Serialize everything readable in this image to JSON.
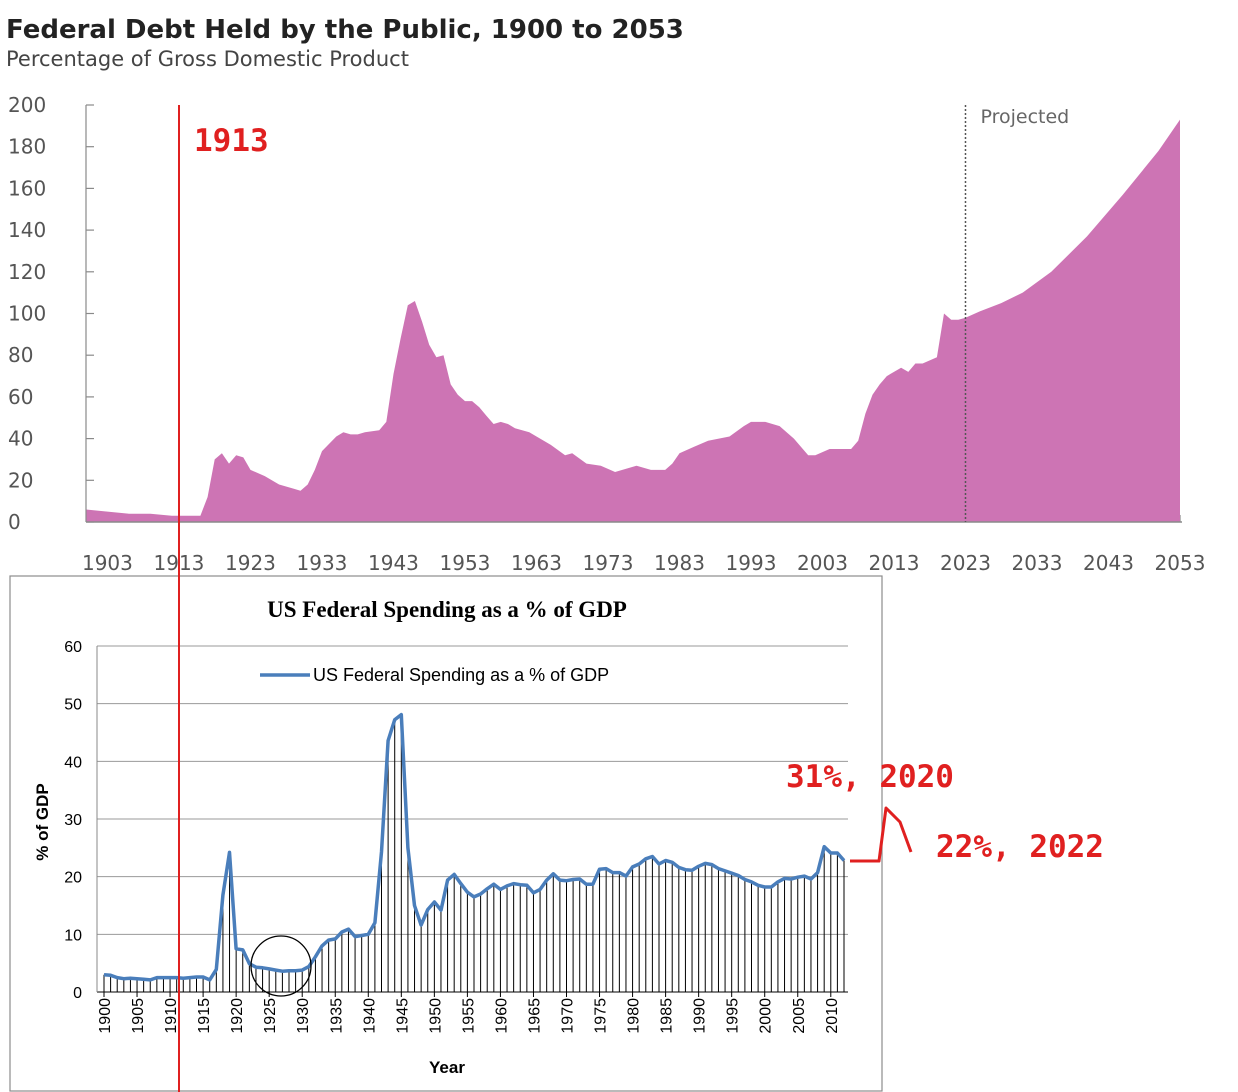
{
  "chart_data": [
    {
      "type": "area",
      "title": "Federal Debt Held by the Public, 1900 to 2053",
      "subtitle": "Percentage of Gross Domestic Product",
      "xlabel": "",
      "ylabel": "",
      "xlim": [
        1900,
        2053
      ],
      "ylim": [
        0,
        200
      ],
      "yticks": [
        0,
        20,
        40,
        60,
        80,
        100,
        120,
        140,
        160,
        180,
        200
      ],
      "xticks": [
        1903,
        1913,
        1923,
        1933,
        1943,
        1953,
        1963,
        1973,
        1983,
        1993,
        2003,
        2013,
        2023,
        2033,
        2043,
        2053
      ],
      "grid": false,
      "color": "#cd74b4",
      "projection_start": 2023,
      "projection_label": "Projected",
      "points": [
        [
          1900,
          6
        ],
        [
          1903,
          5
        ],
        [
          1906,
          4
        ],
        [
          1909,
          4
        ],
        [
          1912,
          3
        ],
        [
          1914,
          3
        ],
        [
          1915,
          3
        ],
        [
          1916,
          3
        ],
        [
          1917,
          12
        ],
        [
          1918,
          30
        ],
        [
          1919,
          33
        ],
        [
          1920,
          28
        ],
        [
          1921,
          32
        ],
        [
          1922,
          31
        ],
        [
          1923,
          25
        ],
        [
          1925,
          22
        ],
        [
          1927,
          18
        ],
        [
          1929,
          16
        ],
        [
          1930,
          15
        ],
        [
          1931,
          18
        ],
        [
          1932,
          25
        ],
        [
          1933,
          34
        ],
        [
          1935,
          41
        ],
        [
          1936,
          43
        ],
        [
          1937,
          42
        ],
        [
          1938,
          42
        ],
        [
          1939,
          43
        ],
        [
          1941,
          44
        ],
        [
          1942,
          48
        ],
        [
          1943,
          71
        ],
        [
          1944,
          88
        ],
        [
          1945,
          104
        ],
        [
          1946,
          106
        ],
        [
          1947,
          96
        ],
        [
          1948,
          85
        ],
        [
          1949,
          79
        ],
        [
          1950,
          80
        ],
        [
          1951,
          66
        ],
        [
          1952,
          61
        ],
        [
          1953,
          58
        ],
        [
          1954,
          58
        ],
        [
          1955,
          55
        ],
        [
          1956,
          51
        ],
        [
          1957,
          47
        ],
        [
          1958,
          48
        ],
        [
          1959,
          47
        ],
        [
          1960,
          45
        ],
        [
          1962,
          43
        ],
        [
          1963,
          41
        ],
        [
          1965,
          37
        ],
        [
          1967,
          32
        ],
        [
          1968,
          33
        ],
        [
          1970,
          28
        ],
        [
          1972,
          27
        ],
        [
          1974,
          24
        ],
        [
          1975,
          25
        ],
        [
          1977,
          27
        ],
        [
          1979,
          25
        ],
        [
          1981,
          25
        ],
        [
          1982,
          28
        ],
        [
          1983,
          33
        ],
        [
          1985,
          36
        ],
        [
          1987,
          39
        ],
        [
          1990,
          41
        ],
        [
          1992,
          46
        ],
        [
          1993,
          48
        ],
        [
          1995,
          48
        ],
        [
          1997,
          46
        ],
        [
          1999,
          40
        ],
        [
          2001,
          32
        ],
        [
          2002,
          32
        ],
        [
          2004,
          35
        ],
        [
          2006,
          35
        ],
        [
          2007,
          35
        ],
        [
          2008,
          39
        ],
        [
          2009,
          52
        ],
        [
          2010,
          61
        ],
        [
          2011,
          66
        ],
        [
          2012,
          70
        ],
        [
          2014,
          74
        ],
        [
          2015,
          72
        ],
        [
          2016,
          76
        ],
        [
          2017,
          76
        ],
        [
          2019,
          79
        ],
        [
          2020,
          100
        ],
        [
          2021,
          97
        ],
        [
          2022,
          97
        ],
        [
          2023,
          98
        ],
        [
          2025,
          101
        ],
        [
          2028,
          105
        ],
        [
          2031,
          110
        ],
        [
          2035,
          120
        ],
        [
          2040,
          137
        ],
        [
          2045,
          157
        ],
        [
          2050,
          178
        ],
        [
          2053,
          193
        ]
      ]
    },
    {
      "type": "line",
      "title": "US Federal Spending as a % of GDP",
      "xlabel": "Year",
      "ylabel": "% of GDP",
      "xlim": [
        1900,
        2012
      ],
      "ylim": [
        0,
        60
      ],
      "yticks": [
        0,
        10,
        20,
        30,
        40,
        50,
        60
      ],
      "xticks": [
        1900,
        1905,
        1910,
        1915,
        1920,
        1925,
        1930,
        1935,
        1940,
        1945,
        1950,
        1955,
        1960,
        1965,
        1970,
        1975,
        1980,
        1985,
        1990,
        1995,
        2000,
        2005,
        2010
      ],
      "grid": true,
      "legend": "top-center",
      "series": [
        {
          "name": "US Federal Spending as a % of GDP",
          "color": "#4a7ebb",
          "x": [
            1900,
            1901,
            1902,
            1903,
            1904,
            1905,
            1906,
            1907,
            1908,
            1909,
            1910,
            1911,
            1912,
            1913,
            1914,
            1915,
            1916,
            1917,
            1918,
            1919,
            1920,
            1921,
            1922,
            1923,
            1924,
            1925,
            1926,
            1927,
            1928,
            1929,
            1930,
            1931,
            1932,
            1933,
            1934,
            1935,
            1936,
            1937,
            1938,
            1939,
            1940,
            1941,
            1942,
            1943,
            1944,
            1945,
            1946,
            1947,
            1948,
            1949,
            1950,
            1951,
            1952,
            1953,
            1954,
            1955,
            1956,
            1957,
            1958,
            1959,
            1960,
            1961,
            1962,
            1963,
            1964,
            1965,
            1966,
            1967,
            1968,
            1969,
            1970,
            1971,
            1972,
            1973,
            1974,
            1975,
            1976,
            1977,
            1978,
            1979,
            1980,
            1981,
            1982,
            1983,
            1984,
            1985,
            1986,
            1987,
            1988,
            1989,
            1990,
            1991,
            1992,
            1993,
            1994,
            1995,
            1996,
            1997,
            1998,
            1999,
            2000,
            2001,
            2002,
            2003,
            2004,
            2005,
            2006,
            2007,
            2008,
            2009,
            2010,
            2011,
            2012
          ],
          "values": [
            3.0,
            2.9,
            2.5,
            2.3,
            2.4,
            2.3,
            2.2,
            2.1,
            2.5,
            2.5,
            2.5,
            2.5,
            2.4,
            2.5,
            2.6,
            2.6,
            2.1,
            3.9,
            16.8,
            24.2,
            7.5,
            7.3,
            4.9,
            4.3,
            4.2,
            4.0,
            3.8,
            3.6,
            3.7,
            3.7,
            3.8,
            4.4,
            6.1,
            8.0,
            9.0,
            9.2,
            10.4,
            10.9,
            9.6,
            9.8,
            10.0,
            12.0,
            24.3,
            43.6,
            47.2,
            48.1,
            25.0,
            15.0,
            11.6,
            14.3,
            15.6,
            14.2,
            19.4,
            20.4,
            18.8,
            17.3,
            16.5,
            17.0,
            17.9,
            18.7,
            17.8,
            18.4,
            18.8,
            18.6,
            18.5,
            17.2,
            17.8,
            19.4,
            20.5,
            19.4,
            19.3,
            19.5,
            19.6,
            18.7,
            18.7,
            21.3,
            21.4,
            20.7,
            20.7,
            20.1,
            21.7,
            22.2,
            23.1,
            23.5,
            22.2,
            22.8,
            22.5,
            21.6,
            21.2,
            21.1,
            21.8,
            22.3,
            22.1,
            21.4,
            21.0,
            20.6,
            20.2,
            19.5,
            19.1,
            18.5,
            18.2,
            18.2,
            19.1,
            19.7,
            19.6,
            19.9,
            20.1,
            19.6,
            20.7,
            25.2,
            24.1,
            24.1,
            22.8
          ]
        }
      ]
    }
  ],
  "annotations": {
    "line_label": "1913",
    "note_2020": "31%, 2020",
    "note_2022": "22%, 2022",
    "line_color": "#e02020"
  }
}
